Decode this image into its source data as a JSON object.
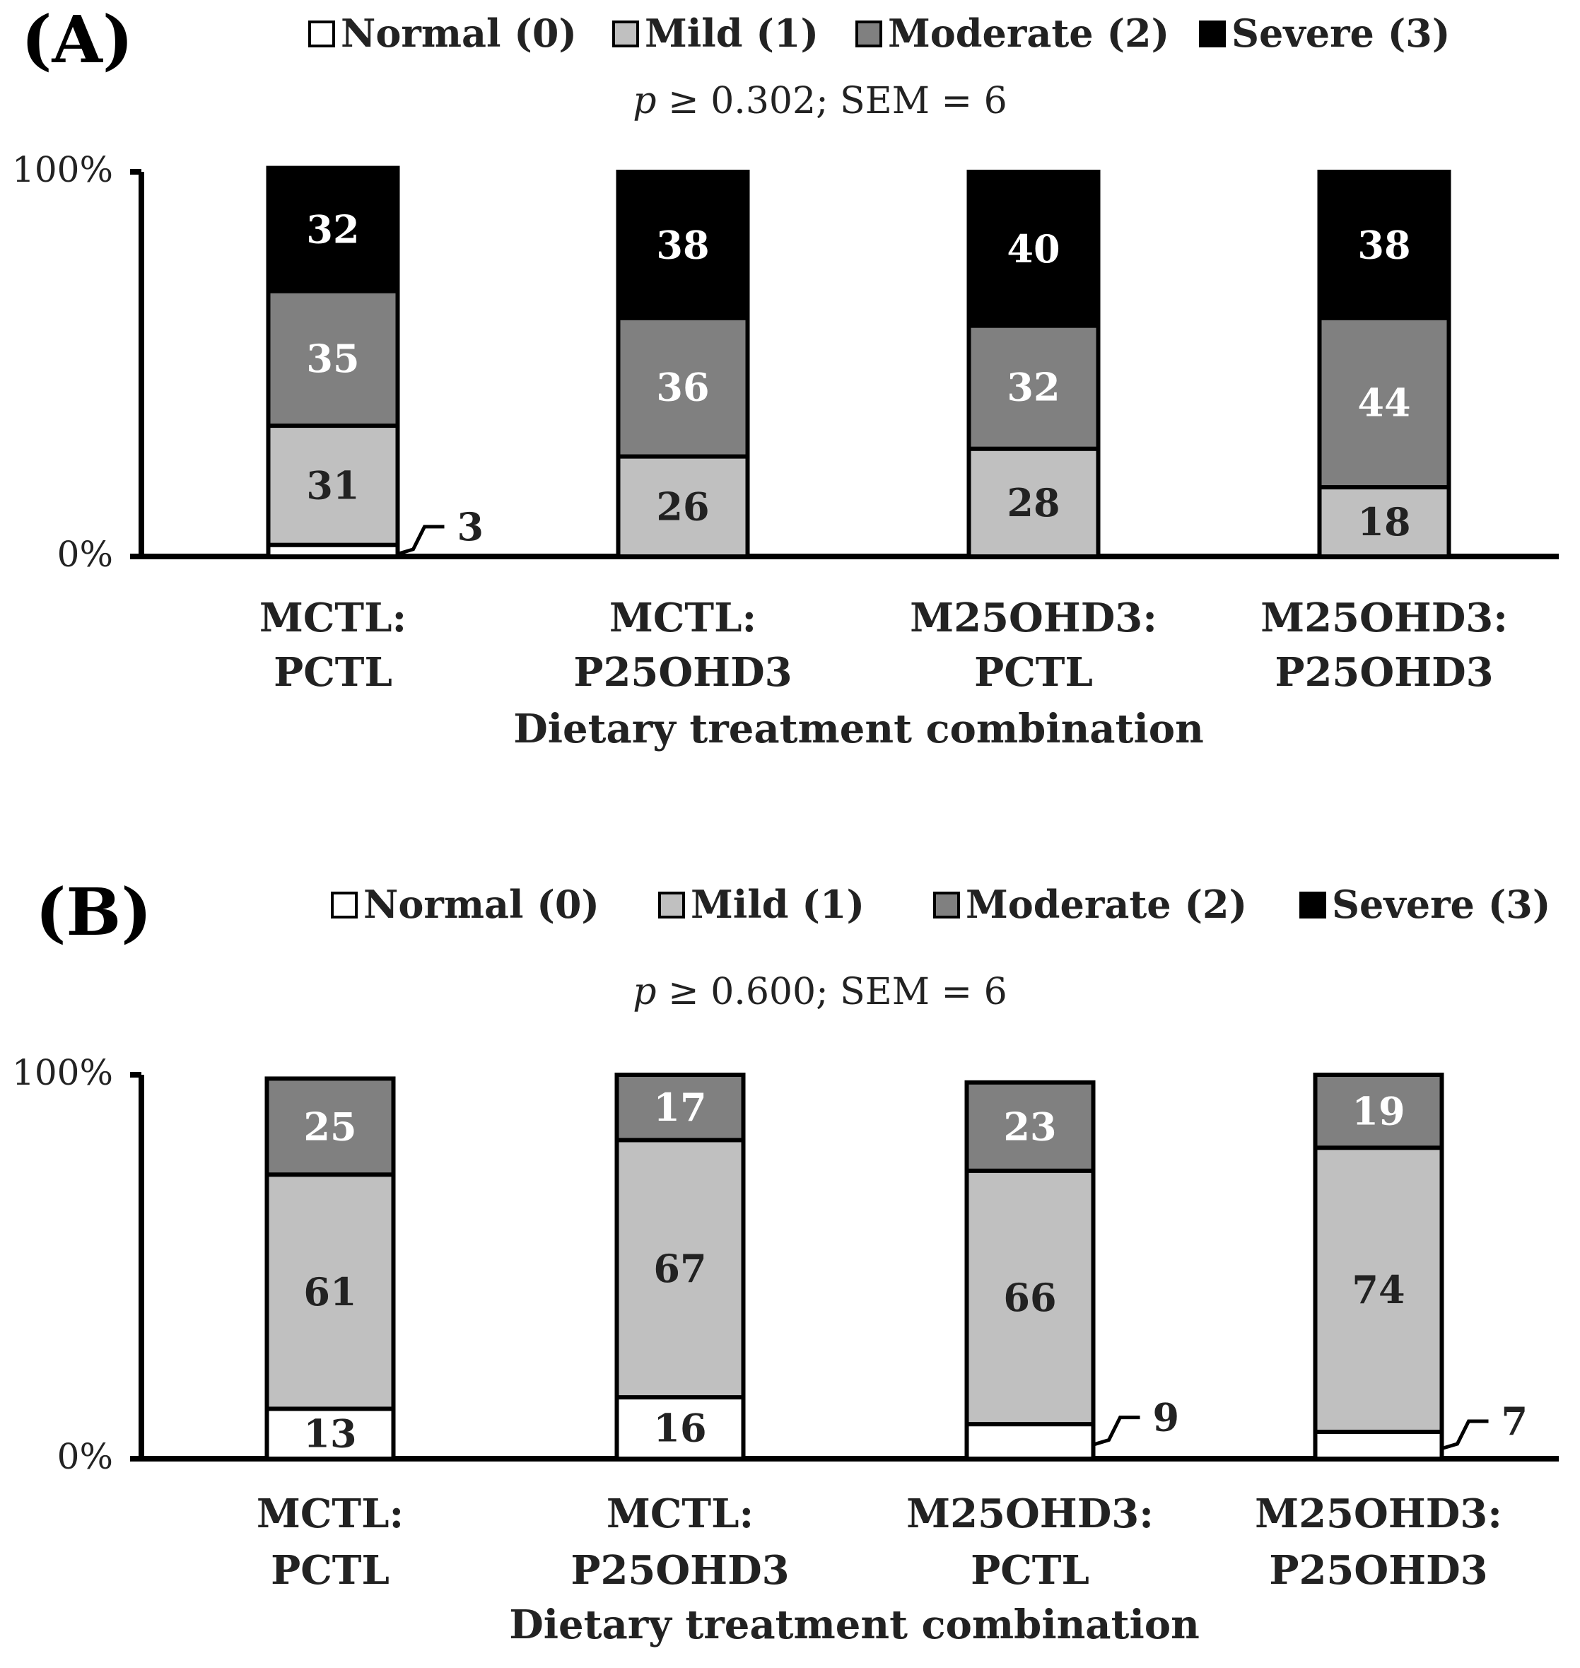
{
  "chart_data": [
    {
      "type": "bar",
      "stacked": true,
      "panel": "(A)",
      "subtitle_italic": "p",
      "subtitle_rest": " ≥ 0.302; SEM = 6",
      "xlabel": "Dietary treatment combination",
      "ylabel": "",
      "ylim": [
        0,
        100
      ],
      "yticks": [
        "0%",
        "100%"
      ],
      "categories": [
        [
          "MCTL:",
          "PCTL"
        ],
        [
          "MCTL:",
          "P25OHD3"
        ],
        [
          "M25OHD3:",
          "PCTL"
        ],
        [
          "M25OHD3:",
          "P25OHD3"
        ]
      ],
      "legend": [
        "Normal (0)",
        "Mild (1)",
        "Moderate (2)",
        "Severe (3)"
      ],
      "legend_position": "top",
      "series": [
        {
          "name": "Normal (0)",
          "values": [
            3,
            0,
            0,
            0
          ]
        },
        {
          "name": "Mild (1)",
          "values": [
            31,
            26,
            28,
            18
          ]
        },
        {
          "name": "Moderate (2)",
          "values": [
            35,
            36,
            32,
            44
          ]
        },
        {
          "name": "Severe (3)",
          "values": [
            32,
            38,
            40,
            38
          ]
        }
      ],
      "callouts": [
        {
          "category_index": 0,
          "series_index": 0,
          "label": "3"
        }
      ]
    },
    {
      "type": "bar",
      "stacked": true,
      "panel": "(B)",
      "subtitle_italic": "p",
      "subtitle_rest": " ≥ 0.600; SEM = 6",
      "xlabel": "Dietary treatment combination",
      "ylabel": "",
      "ylim": [
        0,
        100
      ],
      "yticks": [
        "0%",
        "100%"
      ],
      "categories": [
        [
          "MCTL:",
          "PCTL"
        ],
        [
          "MCTL:",
          "P25OHD3"
        ],
        [
          "M25OHD3:",
          "PCTL"
        ],
        [
          "M25OHD3:",
          "P25OHD3"
        ]
      ],
      "legend": [
        "Normal (0)",
        "Mild (1)",
        "Moderate (2)",
        "Severe (3)"
      ],
      "legend_position": "top",
      "series": [
        {
          "name": "Normal (0)",
          "values": [
            13,
            16,
            9,
            7
          ]
        },
        {
          "name": "Mild (1)",
          "values": [
            61,
            67,
            66,
            74
          ]
        },
        {
          "name": "Moderate (2)",
          "values": [
            25,
            17,
            23,
            19
          ]
        },
        {
          "name": "Severe (3)",
          "values": [
            0,
            0,
            0,
            0
          ]
        }
      ],
      "callouts": [
        {
          "category_index": 2,
          "series_index": 0,
          "label": "9"
        },
        {
          "category_index": 3,
          "series_index": 0,
          "label": "7"
        }
      ]
    }
  ],
  "colors": {
    "series_fill": [
      "#ffffff",
      "#c0c0c0",
      "#808080",
      "#000000"
    ],
    "segment_label": [
      "#222222",
      "#222222",
      "#ffffff",
      "#ffffff"
    ],
    "stroke": "#000000"
  }
}
